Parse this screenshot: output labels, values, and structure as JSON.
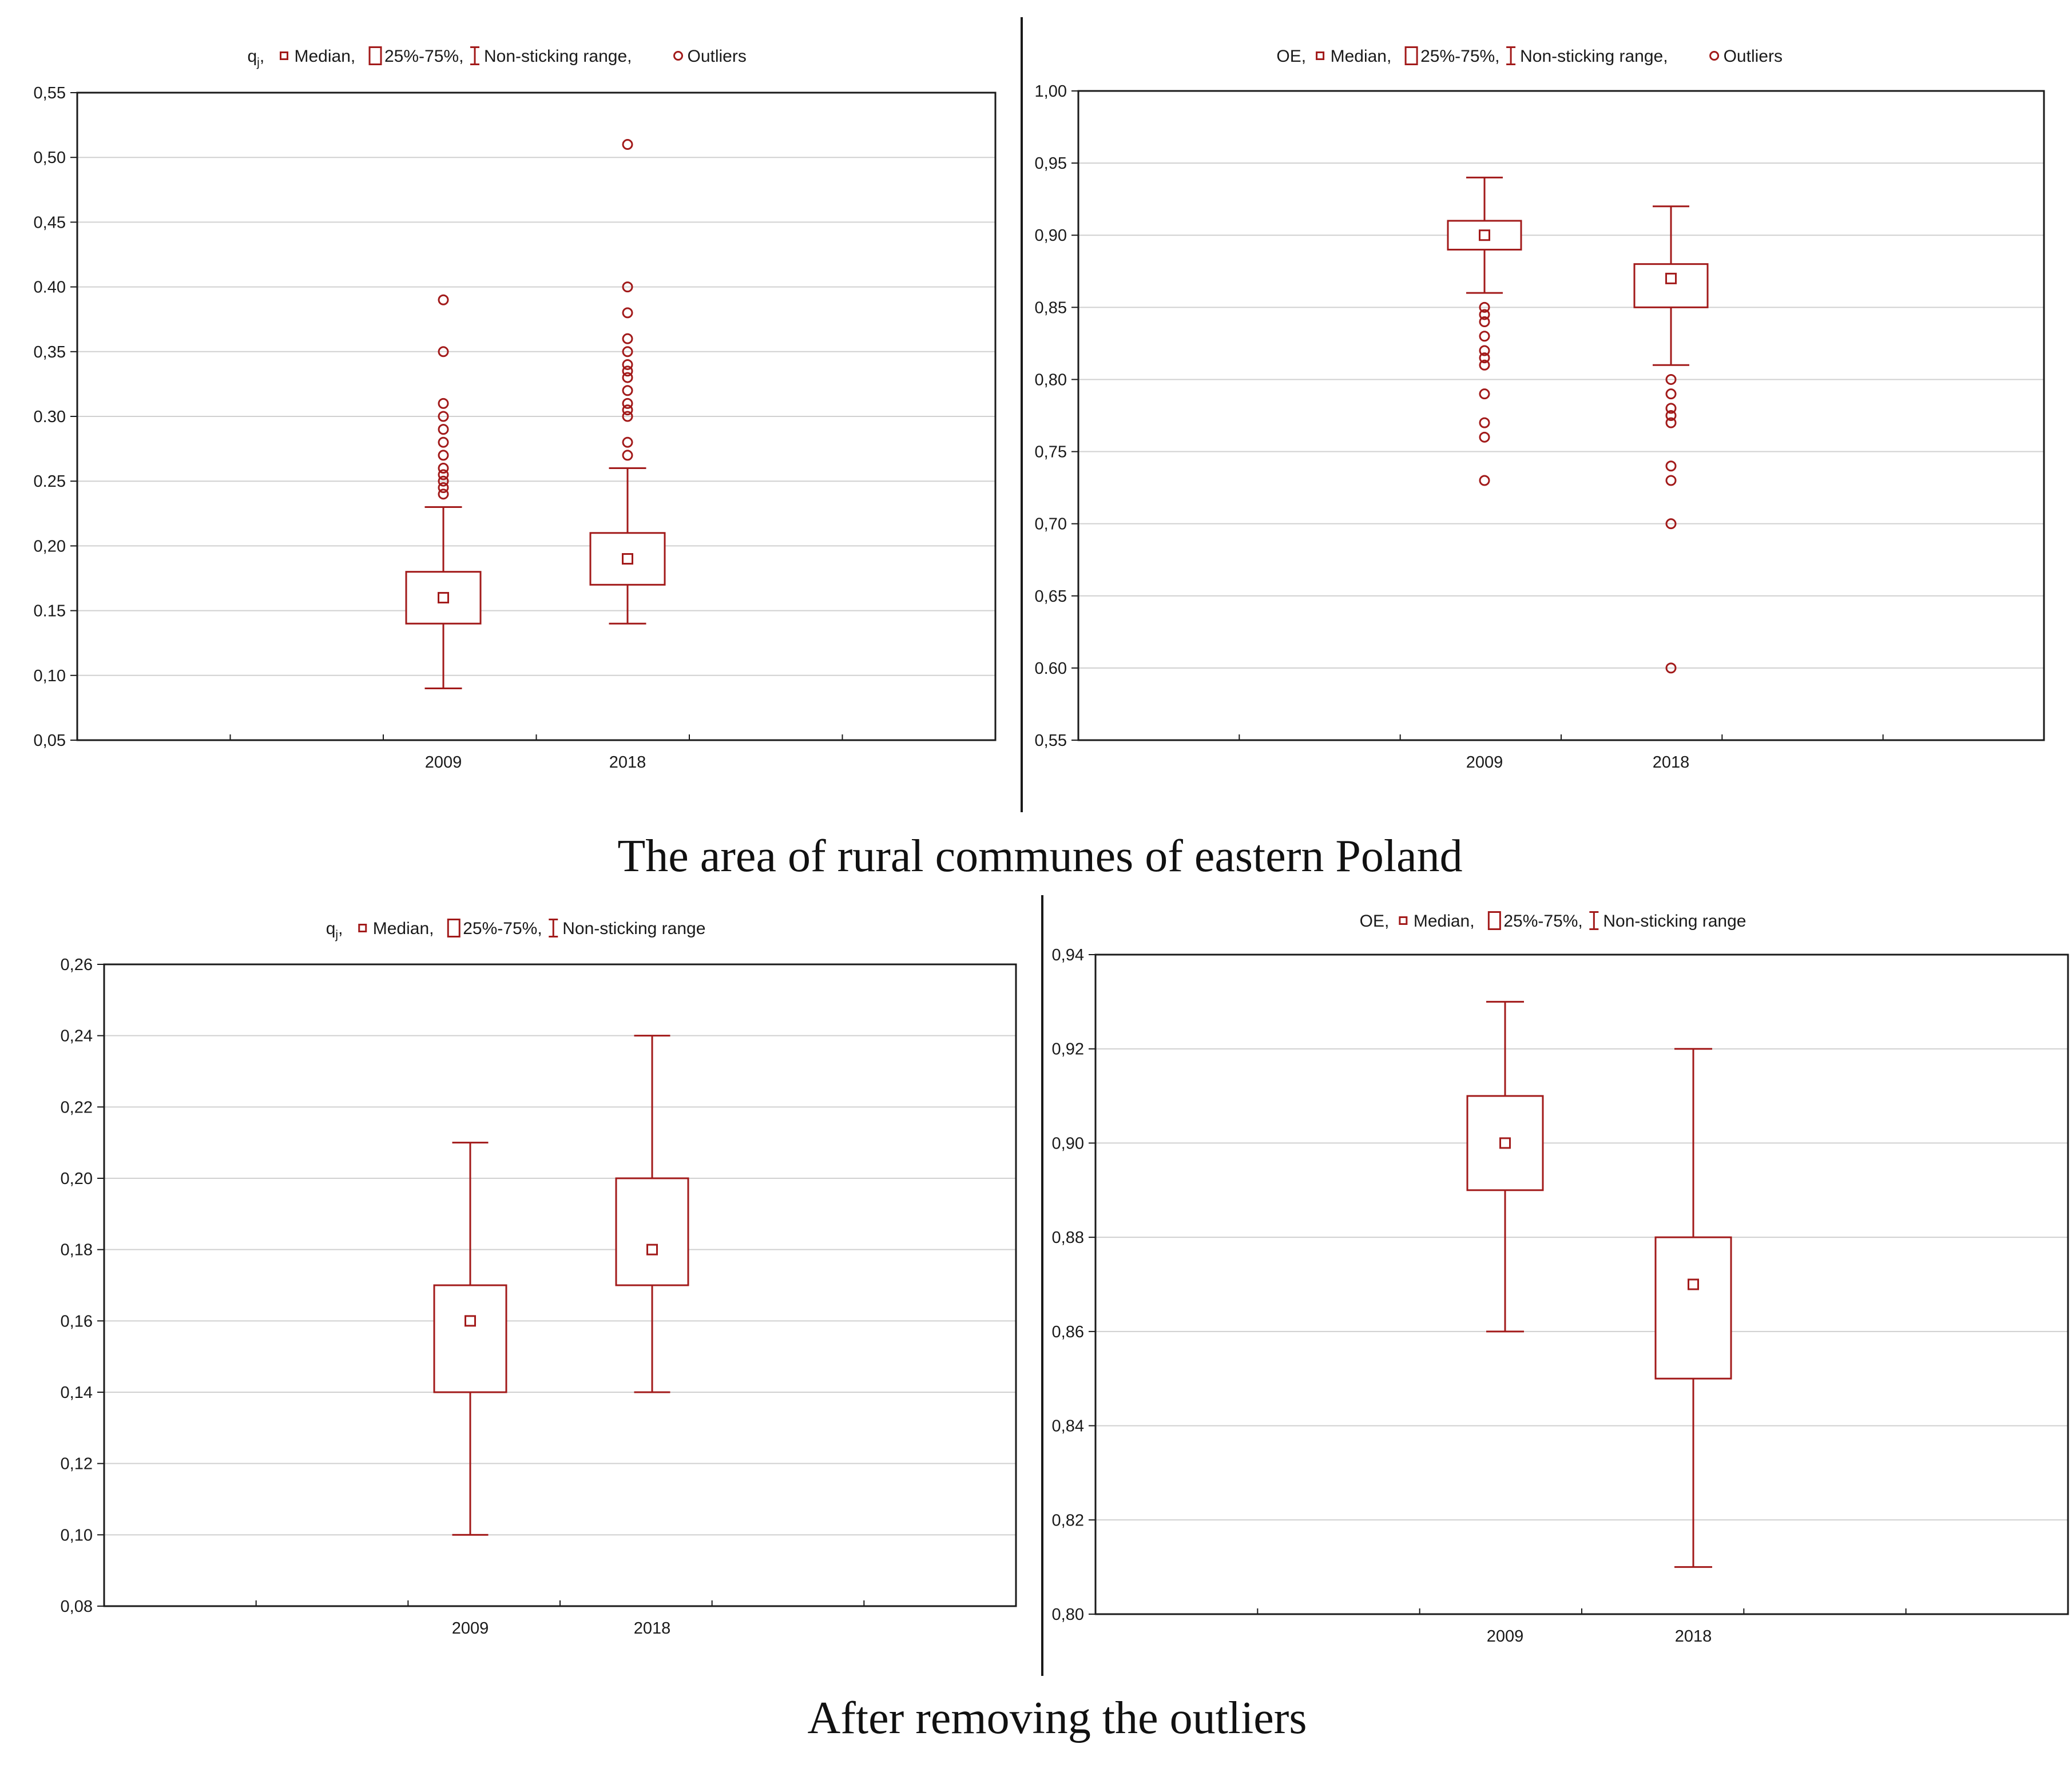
{
  "captions": {
    "top": "The area of rural communes of eastern Poland",
    "bottom": "After removing the outliers"
  },
  "colors": {
    "series": "#a21a1a",
    "axis": "#1a1a1a",
    "grid": "#d0d0d0",
    "text": "#1a1a1a"
  },
  "chart_data": [
    {
      "id": "top-left",
      "type": "boxplot",
      "variable_label": "q",
      "variable_subscript": "j",
      "legend": [
        "Median,",
        "25%-75%,",
        "Non-sticking range,",
        "Outliers"
      ],
      "categories": [
        "2009",
        "2018"
      ],
      "ylim": [
        0.05,
        0.55
      ],
      "yticks": [
        "0,05",
        "0,10",
        "0.15",
        "0,20",
        "0.25",
        "0.30",
        "0,35",
        "0.40",
        "0,45",
        "0,50",
        "0,55"
      ],
      "grid": true,
      "boxes": [
        {
          "label": "2009",
          "median": 0.16,
          "q1": 0.14,
          "q3": 0.18,
          "whisker_low": 0.09,
          "whisker_high": 0.23,
          "outliers": [
            0.24,
            0.245,
            0.25,
            0.255,
            0.26,
            0.27,
            0.28,
            0.29,
            0.3,
            0.31,
            0.35,
            0.39
          ]
        },
        {
          "label": "2018",
          "median": 0.19,
          "q1": 0.17,
          "q3": 0.21,
          "whisker_low": 0.14,
          "whisker_high": 0.26,
          "outliers": [
            0.27,
            0.28,
            0.3,
            0.305,
            0.31,
            0.32,
            0.33,
            0.335,
            0.34,
            0.35,
            0.36,
            0.38,
            0.4,
            0.51
          ]
        }
      ]
    },
    {
      "id": "top-right",
      "type": "boxplot",
      "variable_label": "OE,",
      "variable_subscript": "",
      "legend": [
        "Median,",
        "25%-75%,",
        "Non-sticking range,",
        "Outliers"
      ],
      "categories": [
        "2009",
        "2018"
      ],
      "ylim": [
        0.55,
        1.0
      ],
      "yticks": [
        "0,55",
        "0.60",
        "0,65",
        "0,70",
        "0,75",
        "0,80",
        "0,85",
        "0,90",
        "0,95",
        "1,00"
      ],
      "grid": true,
      "boxes": [
        {
          "label": "2009",
          "median": 0.9,
          "q1": 0.89,
          "q3": 0.91,
          "whisker_low": 0.86,
          "whisker_high": 0.94,
          "outliers": [
            0.85,
            0.845,
            0.84,
            0.83,
            0.82,
            0.815,
            0.81,
            0.79,
            0.77,
            0.76,
            0.73
          ]
        },
        {
          "label": "2018",
          "median": 0.87,
          "q1": 0.85,
          "q3": 0.88,
          "whisker_low": 0.81,
          "whisker_high": 0.92,
          "outliers": [
            0.8,
            0.79,
            0.78,
            0.775,
            0.77,
            0.74,
            0.73,
            0.7,
            0.6
          ]
        }
      ]
    },
    {
      "id": "bottom-left",
      "type": "boxplot",
      "variable_label": "q",
      "variable_subscript": "j",
      "legend": [
        "Median,",
        "25%-75%,",
        "Non-sticking range"
      ],
      "categories": [
        "2009",
        "2018"
      ],
      "ylim": [
        0.08,
        0.26
      ],
      "yticks": [
        "0,08",
        "0,10",
        "0,12",
        "0,14",
        "0,16",
        "0,18",
        "0,20",
        "0,22",
        "0,24",
        "0,26"
      ],
      "grid": true,
      "boxes": [
        {
          "label": "2009",
          "median": 0.16,
          "q1": 0.14,
          "q3": 0.17,
          "whisker_low": 0.1,
          "whisker_high": 0.21,
          "outliers": []
        },
        {
          "label": "2018",
          "median": 0.18,
          "q1": 0.17,
          "q3": 0.2,
          "whisker_low": 0.14,
          "whisker_high": 0.24,
          "outliers": []
        }
      ]
    },
    {
      "id": "bottom-right",
      "type": "boxplot",
      "variable_label": "OE,",
      "variable_subscript": "",
      "legend": [
        "Median,",
        "25%-75%,",
        "Non-sticking range"
      ],
      "categories": [
        "2009",
        "2018"
      ],
      "ylim": [
        0.8,
        0.94
      ],
      "yticks": [
        "0,80",
        "0,82",
        "0,84",
        "0,86",
        "0,88",
        "0,90",
        "0,92",
        "0,94"
      ],
      "grid": true,
      "boxes": [
        {
          "label": "2009",
          "median": 0.9,
          "q1": 0.89,
          "q3": 0.91,
          "whisker_low": 0.86,
          "whisker_high": 0.93,
          "outliers": []
        },
        {
          "label": "2018",
          "median": 0.87,
          "q1": 0.85,
          "q3": 0.88,
          "whisker_low": 0.81,
          "whisker_high": 0.92,
          "outliers": []
        }
      ]
    }
  ]
}
